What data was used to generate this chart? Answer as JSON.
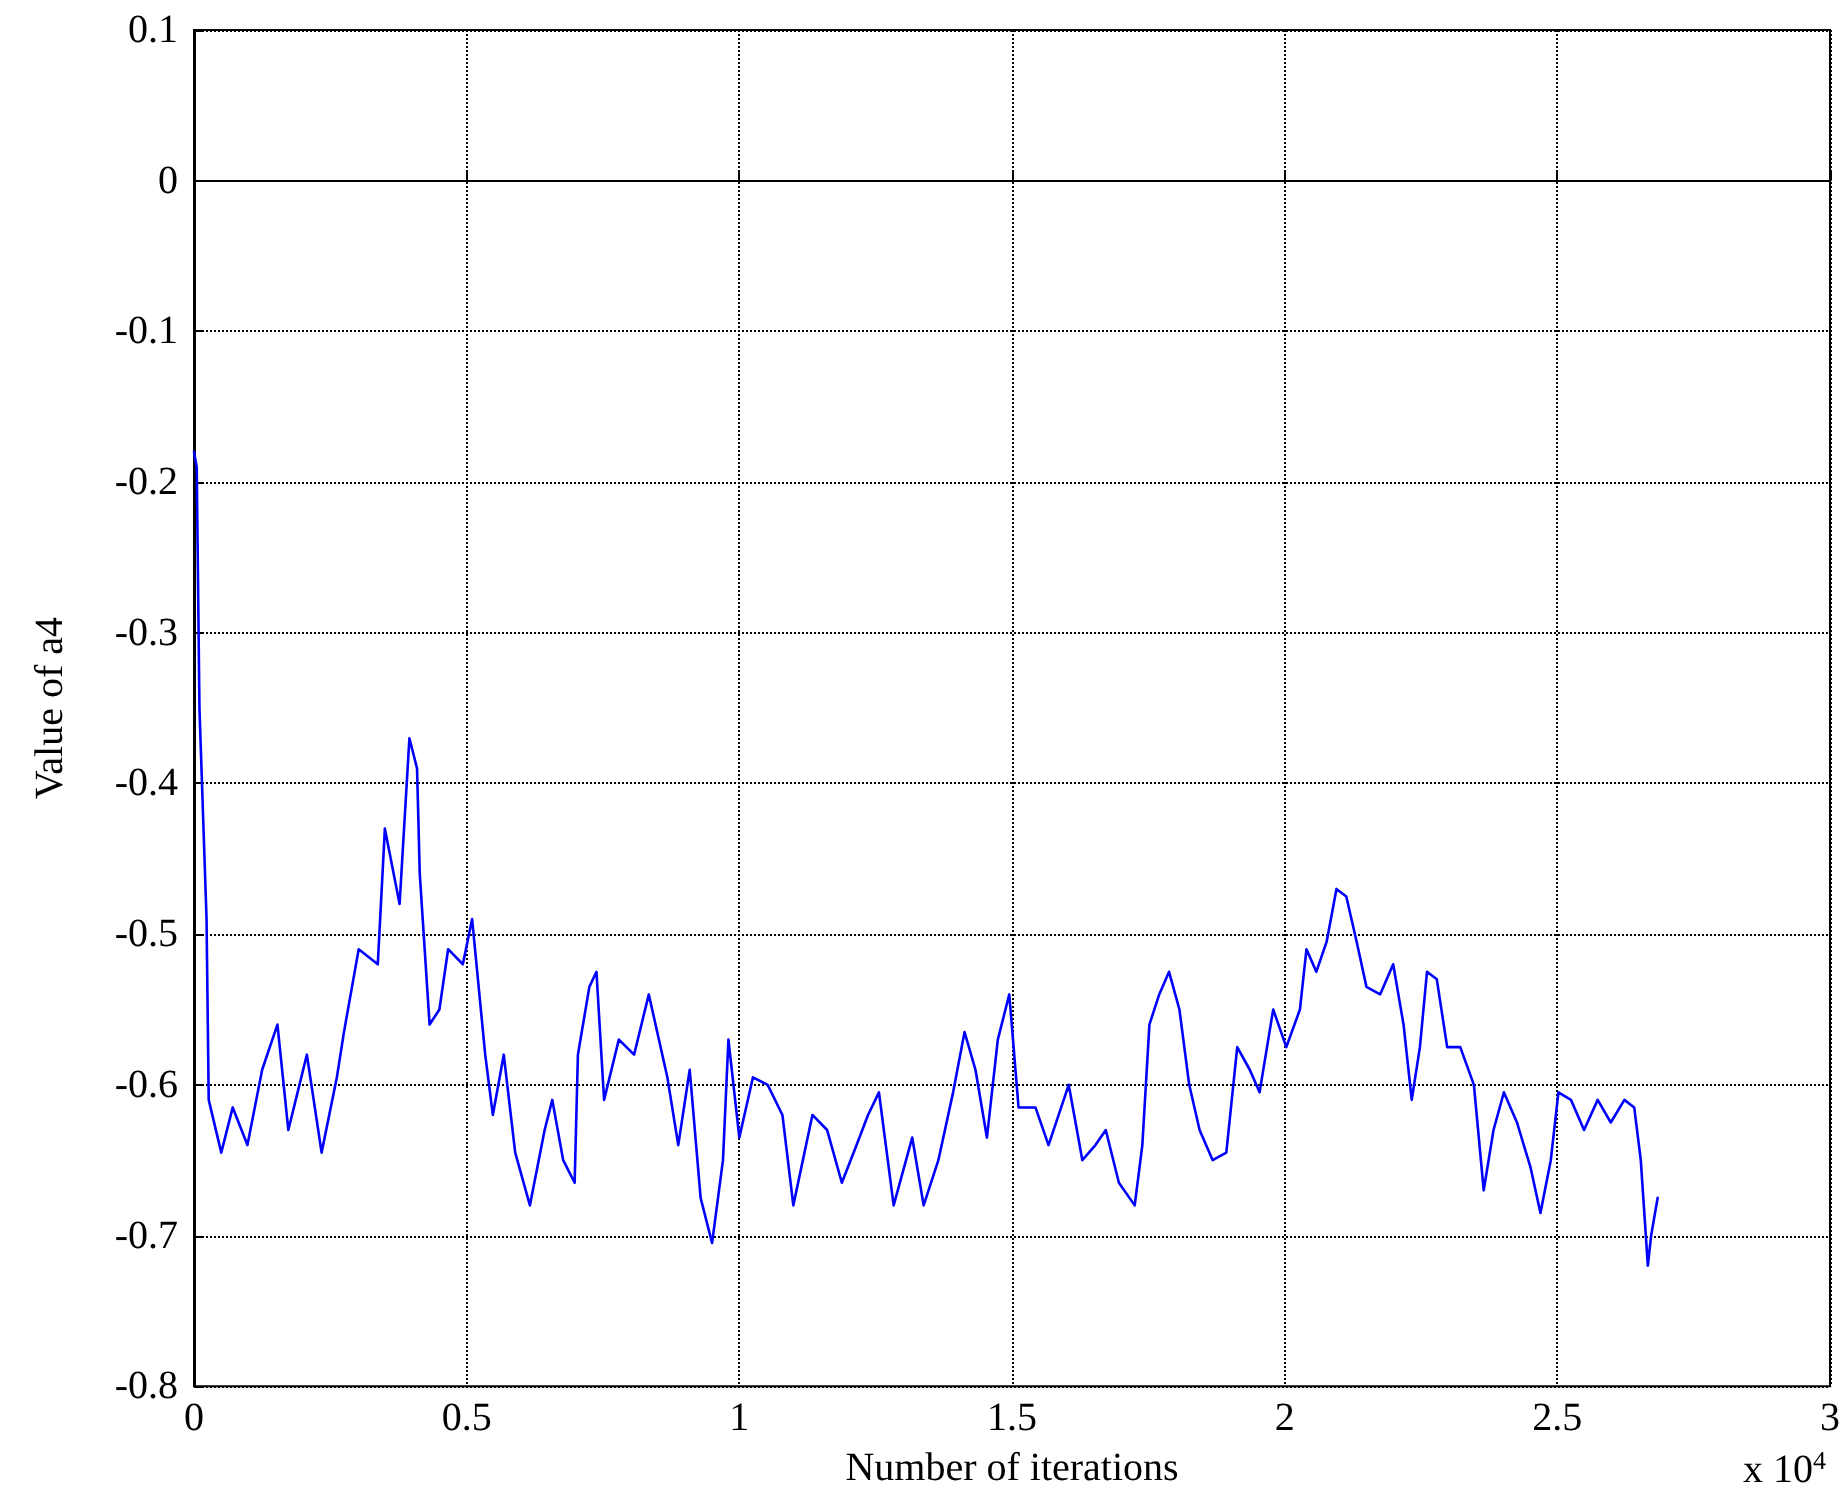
{
  "chart_data": {
    "type": "line",
    "xlabel": "Number of iterations",
    "ylabel": "Value of a4",
    "annotations": [
      "x 10$^{4}$"
    ],
    "xlim": [
      0,
      3
    ],
    "xticks": [
      0,
      0.5,
      1,
      1.5,
      2,
      2.5,
      3
    ],
    "ylim": [
      -0.8,
      0.1
    ],
    "yticks": [
      -0.8,
      -0.7,
      -0.6,
      -0.5,
      -0.4,
      -0.3,
      -0.2,
      -0.1,
      0,
      0.1
    ],
    "grid": true,
    "marker": "none",
    "line_style": "solid",
    "series": [
      {
        "color": "#0000ff",
        "x": [
          0,
          0.005,
          0.01,
          0.023,
          0.027,
          0.05,
          0.071,
          0.098,
          0.125,
          0.153,
          0.173,
          0.207,
          0.234,
          0.262,
          0.275,
          0.302,
          0.337,
          0.35,
          0.377,
          0.395,
          0.409,
          0.414,
          0.432,
          0.45,
          0.466,
          0.493,
          0.51,
          0.534,
          0.548,
          0.568,
          0.589,
          0.616,
          0.643,
          0.657,
          0.677,
          0.698,
          0.704,
          0.725,
          0.738,
          0.752,
          0.779,
          0.807,
          0.834,
          0.868,
          0.888,
          0.909,
          0.929,
          0.95,
          0.97,
          0.98,
          1.0,
          1.025,
          1.052,
          1.079,
          1.099,
          1.134,
          1.161,
          1.188,
          1.215,
          1.236,
          1.256,
          1.283,
          1.317,
          1.338,
          1.365,
          1.392,
          1.413,
          1.433,
          1.454,
          1.474,
          1.495,
          1.512,
          1.543,
          1.567,
          1.604,
          1.629,
          1.653,
          1.672,
          1.696,
          1.725,
          1.739,
          1.752,
          1.77,
          1.788,
          1.807,
          1.825,
          1.844,
          1.868,
          1.893,
          1.913,
          1.936,
          1.954,
          1.979,
          2.003,
          2.028,
          2.04,
          2.058,
          2.077,
          2.095,
          2.113,
          2.132,
          2.15,
          2.175,
          2.199,
          2.218,
          2.233,
          2.248,
          2.261,
          2.279,
          2.298,
          2.322,
          2.347,
          2.365,
          2.383,
          2.402,
          2.426,
          2.451,
          2.469,
          2.488,
          2.502,
          2.525,
          2.549,
          2.574,
          2.598,
          2.623,
          2.641,
          2.653,
          2.666,
          2.672,
          2.684
        ],
        "values": [
          -0.18,
          -0.19,
          -0.35,
          -0.49,
          -0.61,
          -0.645,
          -0.615,
          -0.64,
          -0.59,
          -0.56,
          -0.63,
          -0.58,
          -0.645,
          -0.595,
          -0.565,
          -0.51,
          -0.52,
          -0.43,
          -0.48,
          -0.37,
          -0.39,
          -0.46,
          -0.56,
          -0.55,
          -0.51,
          -0.52,
          -0.49,
          -0.58,
          -0.62,
          -0.58,
          -0.645,
          -0.68,
          -0.63,
          -0.61,
          -0.65,
          -0.665,
          -0.58,
          -0.535,
          -0.525,
          -0.61,
          -0.57,
          -0.58,
          -0.54,
          -0.595,
          -0.64,
          -0.59,
          -0.675,
          -0.705,
          -0.65,
          -0.57,
          -0.635,
          -0.595,
          -0.6,
          -0.62,
          -0.68,
          -0.62,
          -0.63,
          -0.665,
          -0.64,
          -0.62,
          -0.605,
          -0.68,
          -0.635,
          -0.68,
          -0.65,
          -0.605,
          -0.565,
          -0.59,
          -0.635,
          -0.57,
          -0.54,
          -0.615,
          -0.615,
          -0.64,
          -0.6,
          -0.65,
          -0.64,
          -0.63,
          -0.665,
          -0.68,
          -0.64,
          -0.56,
          -0.54,
          -0.525,
          -0.55,
          -0.6,
          -0.63,
          -0.65,
          -0.645,
          -0.575,
          -0.59,
          -0.605,
          -0.55,
          -0.575,
          -0.55,
          -0.51,
          -0.525,
          -0.505,
          -0.47,
          -0.475,
          -0.505,
          -0.535,
          -0.54,
          -0.52,
          -0.56,
          -0.61,
          -0.575,
          -0.525,
          -0.53,
          -0.575,
          -0.575,
          -0.6,
          -0.67,
          -0.63,
          -0.605,
          -0.625,
          -0.655,
          -0.685,
          -0.65,
          -0.605,
          -0.61,
          -0.63,
          -0.61,
          -0.625,
          -0.61,
          -0.615,
          -0.65,
          -0.72,
          -0.7,
          -0.675
        ]
      }
    ]
  }
}
